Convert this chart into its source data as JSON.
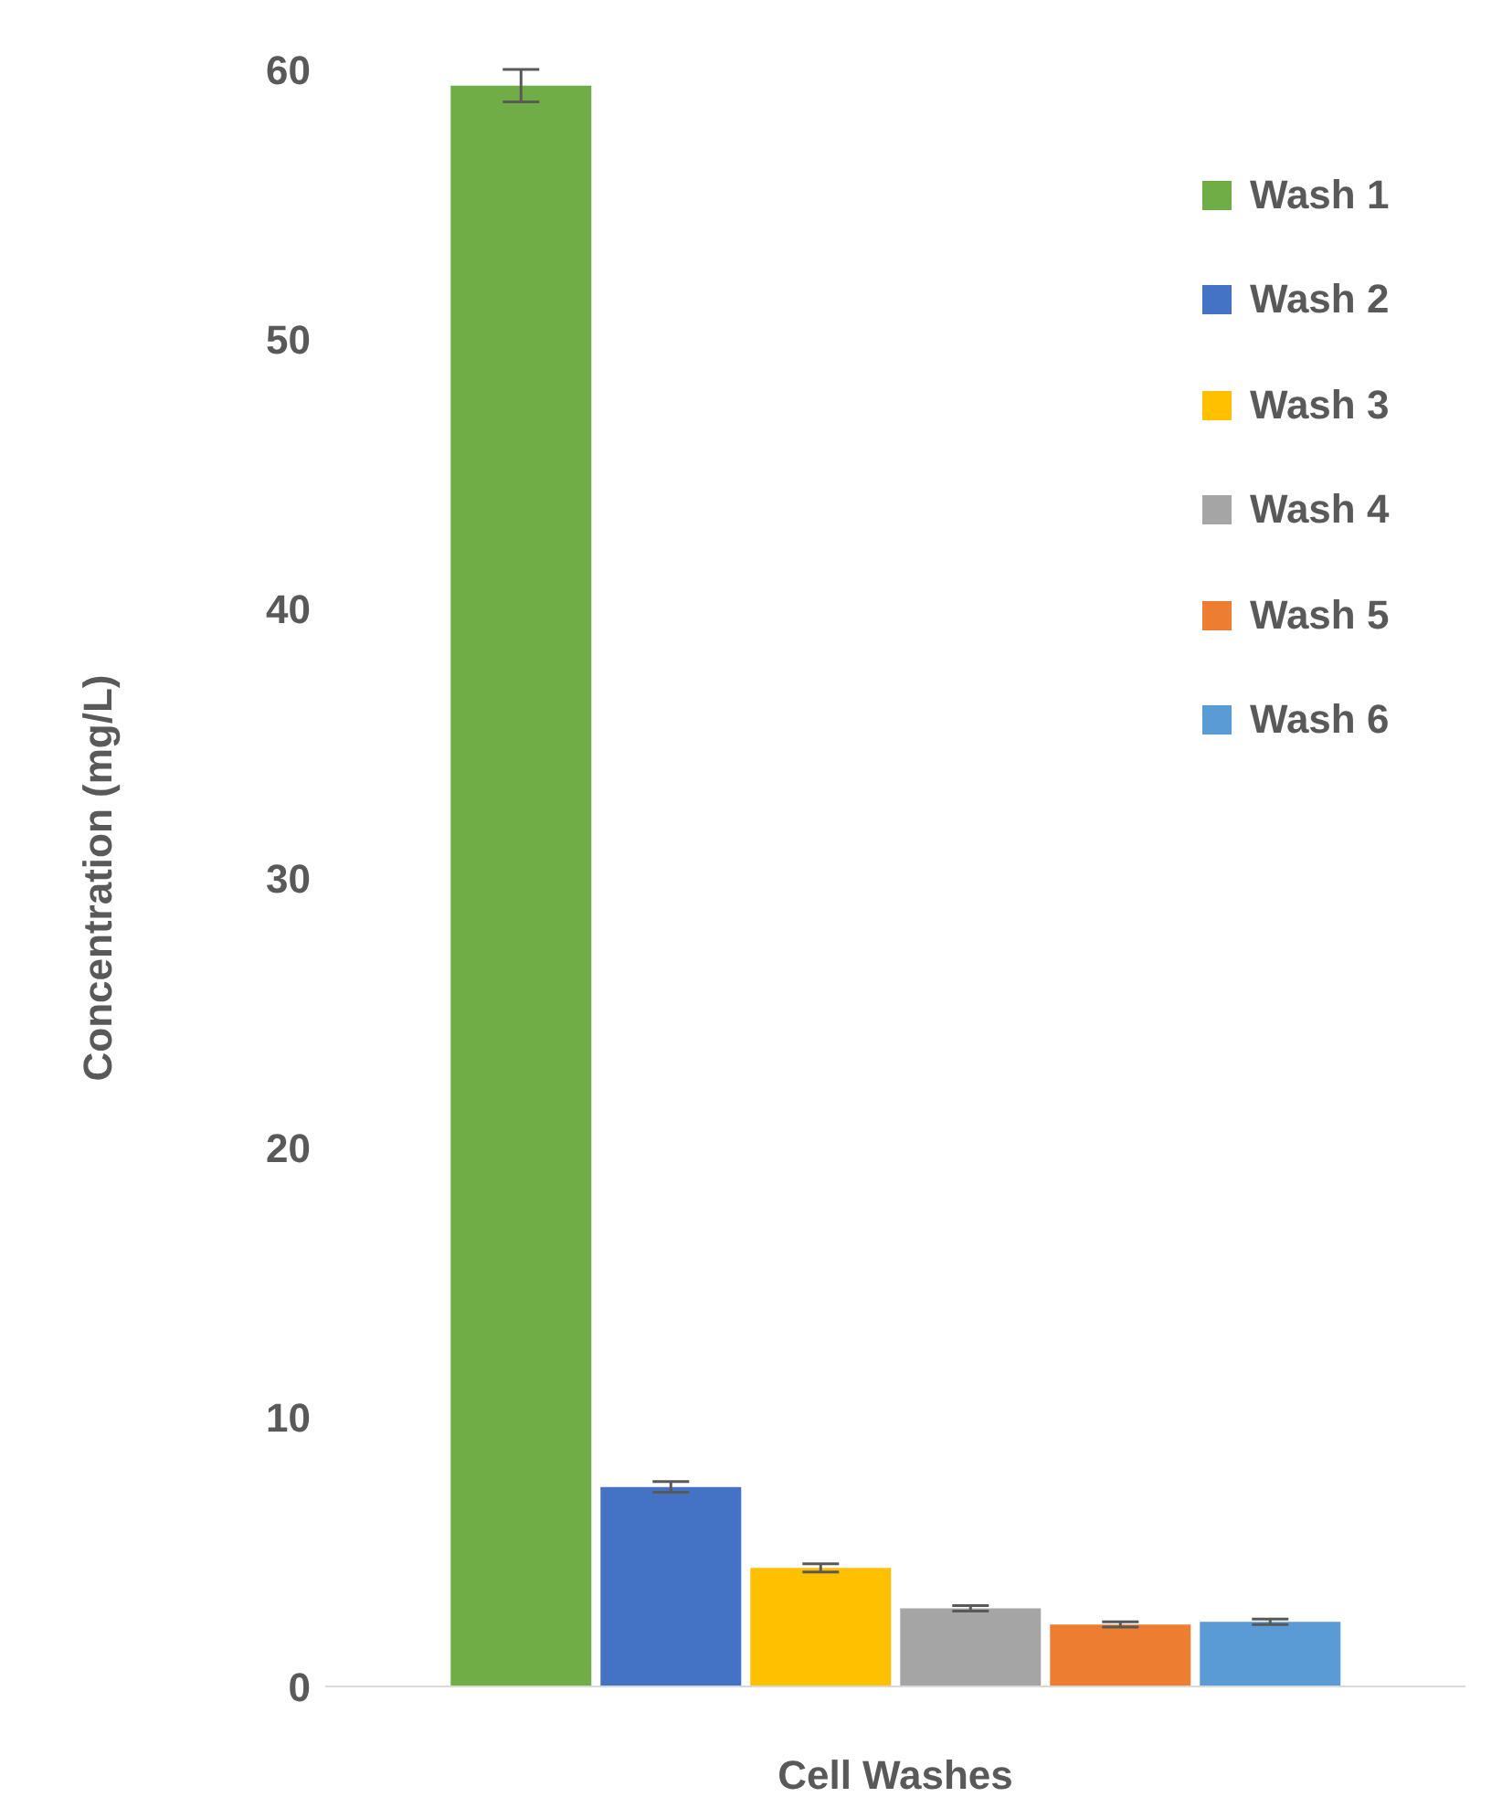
{
  "chart_data": {
    "type": "bar",
    "xlabel": "Cell Washes",
    "ylabel": "Concentration (mg/L)",
    "categories": [
      null
    ],
    "series": [
      {
        "name": "Wash 1",
        "color": "#70ad47",
        "values": [
          59.4
        ],
        "errors": [
          0.6
        ]
      },
      {
        "name": "Wash 2",
        "color": "#4472c4",
        "values": [
          7.4
        ],
        "errors": [
          0.2
        ]
      },
      {
        "name": "Wash 3",
        "color": "#ffc000",
        "values": [
          4.4
        ],
        "errors": [
          0.15
        ]
      },
      {
        "name": "Wash 4",
        "color": "#a5a5a5",
        "values": [
          2.9
        ],
        "errors": [
          0.1
        ]
      },
      {
        "name": "Wash 5",
        "color": "#ed7d31",
        "values": [
          2.3
        ],
        "errors": [
          0.1
        ]
      },
      {
        "name": "Wash 6",
        "color": "#5b9bd5",
        "values": [
          2.4
        ],
        "errors": [
          0.1
        ]
      }
    ],
    "ylim": [
      0,
      60
    ],
    "yticks": [
      0,
      10,
      20,
      30,
      40,
      50,
      60
    ],
    "grid": false,
    "legend": "top right"
  }
}
